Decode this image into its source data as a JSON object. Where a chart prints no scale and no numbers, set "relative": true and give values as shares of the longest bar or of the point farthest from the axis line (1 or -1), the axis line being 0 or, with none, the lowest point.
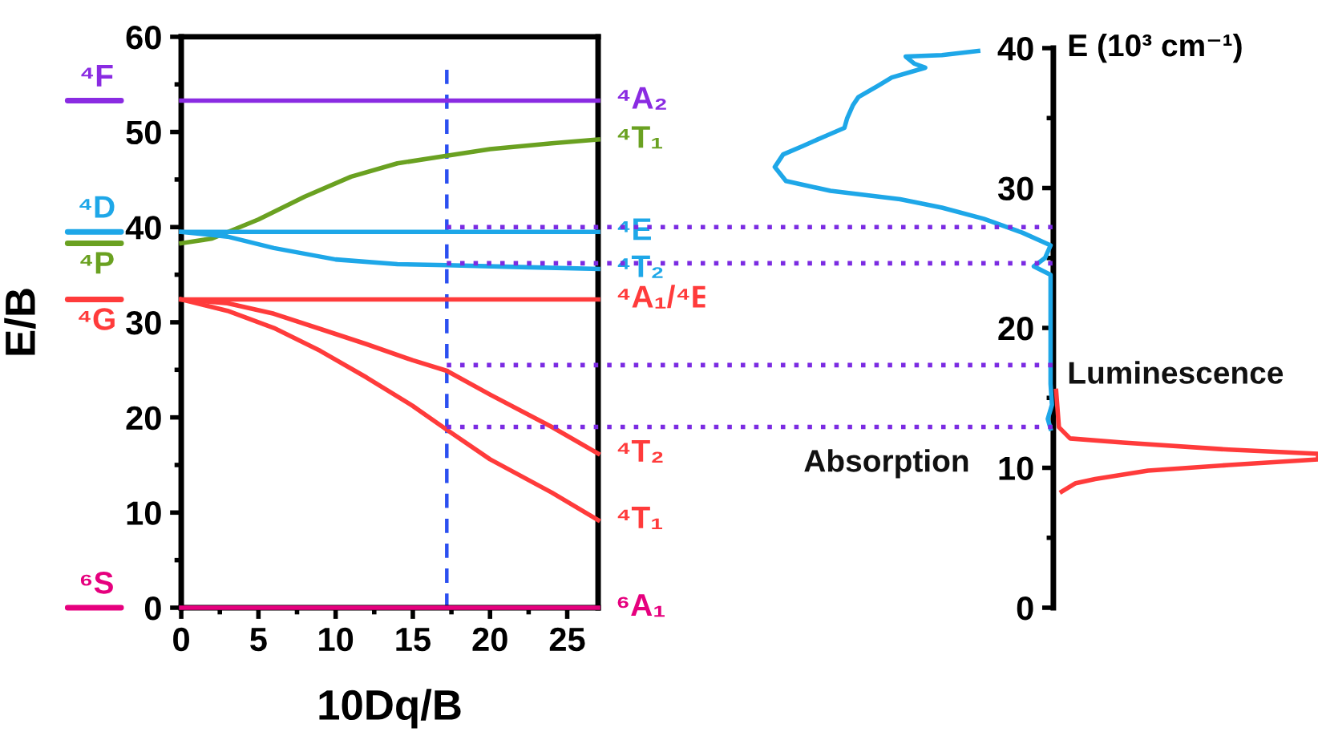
{
  "chart_data": [
    {
      "type": "line",
      "xlabel": "10Dq/B",
      "ylabel": "E/B",
      "xlim": [
        0,
        27
      ],
      "ylim": [
        0,
        60
      ],
      "xticks": [
        0,
        5,
        10,
        15,
        20,
        25
      ],
      "yticks": [
        0,
        10,
        20,
        30,
        40,
        50,
        60
      ],
      "grid": false,
      "legend": false,
      "marker": "none",
      "line_style": "solid",
      "series": [
        {
          "name": "⁴A₂",
          "color": "#8a2be2",
          "x": [
            0,
            27
          ],
          "values": [
            53.3,
            53.3
          ]
        },
        {
          "name": "⁴T₁",
          "color": "#6aa121",
          "x": [
            0,
            2,
            5,
            8,
            11,
            14,
            17.2,
            20,
            24,
            27
          ],
          "values": [
            38.3,
            38.8,
            40.8,
            43.2,
            45.3,
            46.7,
            47.5,
            48.2,
            48.8,
            49.2
          ]
        },
        {
          "name": "⁴E",
          "color": "#1ea7e8",
          "x": [
            0,
            27
          ],
          "values": [
            39.5,
            39.5
          ]
        },
        {
          "name": "⁴T₂",
          "color": "#1ea7e8",
          "x": [
            0,
            3,
            6,
            10,
            14,
            17.2,
            22,
            27
          ],
          "values": [
            39.5,
            39.0,
            37.8,
            36.6,
            36.1,
            36.0,
            35.8,
            35.6
          ]
        },
        {
          "name": "⁴A₁/⁴E",
          "color": "#ff3b3b",
          "x": [
            0,
            27
          ],
          "values": [
            32.4,
            32.4
          ]
        },
        {
          "name": "⁴T₂",
          "color": "#ff3b3b",
          "x": [
            0,
            3,
            6,
            9,
            12,
            15,
            17.2,
            20,
            24,
            27
          ],
          "values": [
            32.4,
            32.0,
            30.9,
            29.3,
            27.7,
            26.0,
            24.9,
            22.4,
            19.0,
            16.2
          ]
        },
        {
          "name": "⁴T₁",
          "color": "#ff3b3b",
          "x": [
            0,
            3,
            6,
            9,
            12,
            15,
            17.2,
            20,
            24,
            27
          ],
          "values": [
            32.4,
            31.2,
            29.4,
            27.0,
            24.2,
            21.2,
            18.7,
            15.6,
            12.1,
            9.2
          ]
        },
        {
          "name": "⁶A₁",
          "color": "#e6007e",
          "x": [
            0,
            27
          ],
          "values": [
            0,
            0
          ]
        }
      ],
      "annotations": [
        "⁴F",
        "⁴D",
        "⁴P",
        "⁴G",
        "⁶S"
      ],
      "ref_lines": [
        {
          "axis": "x",
          "value": 17.2,
          "color": "#2b4ff0",
          "line_style": "dashed"
        },
        {
          "axis": "y",
          "value": 40.0,
          "color": "#7b2be2",
          "line_style": "dotted"
        },
        {
          "axis": "y",
          "value": 36.2,
          "color": "#7b2be2",
          "line_style": "dotted"
        },
        {
          "axis": "y",
          "value": 25.5,
          "color": "#7b2be2",
          "line_style": "dotted"
        },
        {
          "axis": "y",
          "value": 19.0,
          "color": "#7b2be2",
          "line_style": "dotted"
        }
      ]
    },
    {
      "type": "line",
      "orientation": "horizontal",
      "ylabel": "E (10³ cm⁻¹)",
      "ylim": [
        0,
        40
      ],
      "yticks": [
        0,
        10,
        20,
        30,
        40
      ],
      "relative": true,
      "tick_labels": "y",
      "grid": false,
      "legend": false,
      "marker": "none",
      "line_style": "solid",
      "series": [
        {
          "name": "Absorption",
          "color": "#1ea7e8",
          "x": [
            39.8,
            39.5,
            39.4,
            38.9,
            38.6,
            37.9,
            37.3,
            36.5,
            35.9,
            35.0,
            34.3,
            33.7,
            33.0,
            32.4,
            31.5,
            30.5,
            29.8,
            29.2,
            28.6,
            27.8,
            26.8,
            25.9,
            25.0,
            24.4,
            23.8,
            20,
            16,
            14.5,
            13.5,
            12.8
          ],
          "values": [
            -0.27,
            -0.4,
            -0.53,
            -0.5,
            -0.46,
            -0.58,
            -0.63,
            -0.7,
            -0.72,
            -0.74,
            -0.75,
            -0.82,
            -0.9,
            -0.97,
            -1.0,
            -0.96,
            -0.8,
            -0.55,
            -0.4,
            -0.25,
            -0.11,
            -0.01,
            -0.03,
            -0.07,
            -0.01,
            -0.01,
            -0.01,
            -0.005,
            -0.02,
            -0.01
          ]
        },
        {
          "name": "Luminescence",
          "color": "#ff3b3b",
          "x": [
            15.5,
            12.9,
            12.1,
            11.8,
            11.3,
            11.0,
            10.6,
            10.2,
            9.8,
            9.2,
            8.9,
            8.3
          ],
          "values": [
            0.01,
            0.02,
            0.06,
            0.25,
            0.63,
            0.95,
            0.95,
            0.63,
            0.34,
            0.15,
            0.08,
            0.03
          ]
        }
      ]
    }
  ]
}
